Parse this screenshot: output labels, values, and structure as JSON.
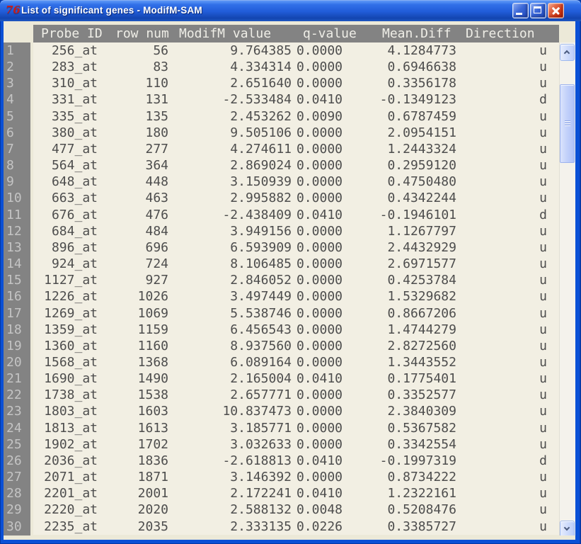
{
  "window": {
    "title": "List of significant genes - ModifM-SAM",
    "icon_text": "76"
  },
  "colors": {
    "titlebar_blue": "#215cd8",
    "frame_blue": "#0a50d6",
    "close_button_red": "#cc3512",
    "header_gray": "#838383",
    "content_beige": "#f2efe3",
    "corner_beige": "#ece9d8",
    "data_text": "#4d4d4d"
  },
  "table": {
    "columns": [
      "Probe ID",
      "row num",
      "ModifM value",
      "q-value",
      "Mean.Diff",
      "Direction"
    ],
    "column_keys": [
      "probe-id",
      "row-num",
      "modifm-value",
      "q-value",
      "mean-diff",
      "direction"
    ],
    "row_numbers": [
      "1",
      "2",
      "3",
      "4",
      "5",
      "6",
      "7",
      "8",
      "9",
      "10",
      "11",
      "12",
      "13",
      "14",
      "15",
      "16",
      "17",
      "18",
      "19",
      "20",
      "21",
      "22",
      "23",
      "24",
      "25",
      "26",
      "27",
      "28",
      "29",
      "30"
    ],
    "rows": [
      [
        "256_at",
        "56",
        "9.764385",
        "0.0000",
        "4.1284773",
        "u"
      ],
      [
        "283_at",
        "83",
        "4.334314",
        "0.0000",
        "0.6946638",
        "u"
      ],
      [
        "310_at",
        "110",
        "2.651640",
        "0.0000",
        "0.3356178",
        "u"
      ],
      [
        "331_at",
        "131",
        "-2.533484",
        "0.0410",
        "-0.1349123",
        "d"
      ],
      [
        "335_at",
        "135",
        "2.453262",
        "0.0090",
        "0.6787459",
        "u"
      ],
      [
        "380_at",
        "180",
        "9.505106",
        "0.0000",
        "2.0954151",
        "u"
      ],
      [
        "477_at",
        "277",
        "4.274611",
        "0.0000",
        "1.2443324",
        "u"
      ],
      [
        "564_at",
        "364",
        "2.869024",
        "0.0000",
        "0.2959120",
        "u"
      ],
      [
        "648_at",
        "448",
        "3.150939",
        "0.0000",
        "0.4750480",
        "u"
      ],
      [
        "663_at",
        "463",
        "2.995882",
        "0.0000",
        "0.4342244",
        "u"
      ],
      [
        "676_at",
        "476",
        "-2.438409",
        "0.0410",
        "-0.1946101",
        "d"
      ],
      [
        "684_at",
        "484",
        "3.949156",
        "0.0000",
        "1.1267797",
        "u"
      ],
      [
        "896_at",
        "696",
        "6.593909",
        "0.0000",
        "2.4432929",
        "u"
      ],
      [
        "924_at",
        "724",
        "8.106485",
        "0.0000",
        "2.6971577",
        "u"
      ],
      [
        "1127_at",
        "927",
        "2.846052",
        "0.0000",
        "0.4253784",
        "u"
      ],
      [
        "1226_at",
        "1026",
        "3.497449",
        "0.0000",
        "1.5329682",
        "u"
      ],
      [
        "1269_at",
        "1069",
        "5.538746",
        "0.0000",
        "0.8667206",
        "u"
      ],
      [
        "1359_at",
        "1159",
        "6.456543",
        "0.0000",
        "1.4744279",
        "u"
      ],
      [
        "1360_at",
        "1160",
        "8.937560",
        "0.0000",
        "2.8272560",
        "u"
      ],
      [
        "1568_at",
        "1368",
        "6.089164",
        "0.0000",
        "1.3443552",
        "u"
      ],
      [
        "1690_at",
        "1490",
        "2.165004",
        "0.0410",
        "0.1775401",
        "u"
      ],
      [
        "1738_at",
        "1538",
        "2.657771",
        "0.0000",
        "0.3352577",
        "u"
      ],
      [
        "1803_at",
        "1603",
        "10.837473",
        "0.0000",
        "2.3840309",
        "u"
      ],
      [
        "1813_at",
        "1613",
        "3.185771",
        "0.0000",
        "0.5367582",
        "u"
      ],
      [
        "1902_at",
        "1702",
        "3.032633",
        "0.0000",
        "0.3342554",
        "u"
      ],
      [
        "2036_at",
        "1836",
        "-2.618813",
        "0.0410",
        "-0.1997319",
        "d"
      ],
      [
        "2071_at",
        "1871",
        "3.146392",
        "0.0000",
        "0.8734222",
        "u"
      ],
      [
        "2201_at",
        "2001",
        "2.172241",
        "0.0410",
        "1.2322161",
        "u"
      ],
      [
        "2220_at",
        "2020",
        "2.588132",
        "0.0048",
        "0.5208476",
        "u"
      ],
      [
        "2235_at",
        "2035",
        "2.333135",
        "0.0226",
        "0.3385727",
        "u"
      ]
    ]
  }
}
